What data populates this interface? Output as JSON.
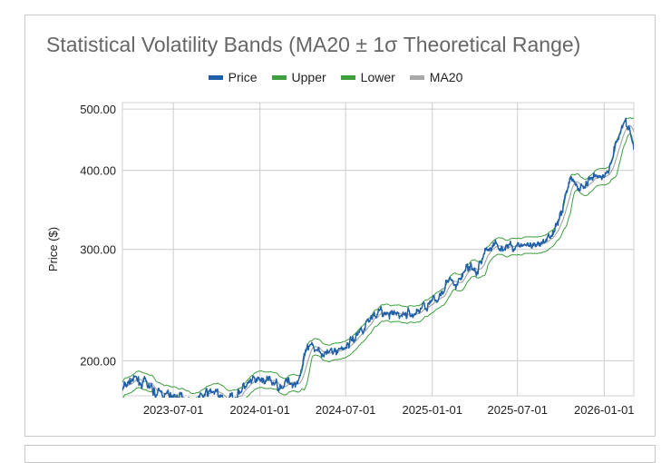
{
  "chart_data": {
    "type": "line",
    "title": "Statistical Volatility Bands (MA20 ± 1σ Theoretical Range)",
    "ylabel": "Price ($)",
    "xlabel": "",
    "y_scale": "log",
    "ylim": [
      176,
      512
    ],
    "xlim": [
      "2023-03-15",
      "2026-03-05"
    ],
    "y_ticks": [
      "200.00",
      "300.00",
      "400.00",
      "500.00"
    ],
    "x_ticks": [
      "2023-07-01",
      "2024-01-01",
      "2024-07-01",
      "2025-01-01",
      "2025-07-01",
      "2026-01-01"
    ],
    "grid": true,
    "legend_position": "top-center",
    "series": [
      {
        "name": "Price",
        "color": "#1f5fa8"
      },
      {
        "name": "Upper",
        "color": "#3f9f3f"
      },
      {
        "name": "Lower",
        "color": "#3f9f3f"
      },
      {
        "name": "MA20",
        "color": "#a8a8a8"
      }
    ],
    "price_anchors": {
      "x": [
        "2023-03-15",
        "2023-04-05",
        "2023-05-01",
        "2023-05-25",
        "2023-06-20",
        "2023-07-15",
        "2023-08-10",
        "2023-09-01",
        "2023-09-25",
        "2023-10-15",
        "2023-11-05",
        "2023-11-25",
        "2023-12-20",
        "2024-01-15",
        "2024-02-10",
        "2024-03-01",
        "2024-03-20",
        "2024-04-10",
        "2024-05-01",
        "2024-05-25",
        "2024-06-15",
        "2024-07-05",
        "2024-07-25",
        "2024-08-15",
        "2024-09-05",
        "2024-09-25",
        "2024-10-20",
        "2024-11-05",
        "2024-11-25",
        "2024-12-15",
        "2025-01-10",
        "2025-02-01",
        "2025-02-20",
        "2025-03-15",
        "2025-04-05",
        "2025-04-25",
        "2025-05-15",
        "2025-06-05",
        "2025-06-25",
        "2025-07-15",
        "2025-08-05",
        "2025-08-25",
        "2025-09-15",
        "2025-10-05",
        "2025-10-20",
        "2025-11-05",
        "2025-11-25",
        "2025-12-15",
        "2026-01-01",
        "2026-01-10",
        "2026-01-25",
        "2026-02-10",
        "2026-02-25",
        "2026-03-05"
      ],
      "y": [
        180,
        187,
        184,
        178,
        176,
        175,
        173,
        176,
        179,
        173,
        175,
        181,
        185,
        186,
        183,
        185,
        185,
        207,
        210,
        205,
        208,
        212,
        220,
        230,
        240,
        236,
        236,
        237,
        237,
        245,
        248,
        270,
        260,
        282,
        275,
        300,
        305,
        302,
        304,
        306,
        300,
        305,
        320,
        350,
        390,
        375,
        380,
        395,
        390,
        400,
        440,
        480,
        460,
        430
      ]
    }
  }
}
